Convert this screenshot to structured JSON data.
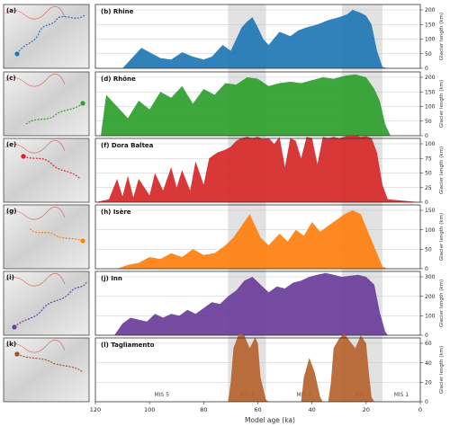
{
  "figure": {
    "xlabel": "Model age (ka)",
    "ylabel": "Glacier length (km)",
    "x_ticks": [
      120,
      100,
      80,
      60,
      40,
      20,
      0
    ],
    "mis_bands": [
      {
        "label": "MIS 5",
        "from": 120,
        "to": 71,
        "shaded": false
      },
      {
        "label": "MIS 4",
        "from": 71,
        "to": 57,
        "shaded": true
      },
      {
        "label": "MIS 3",
        "from": 57,
        "to": 29,
        "shaded": false
      },
      {
        "label": "MIS 2",
        "from": 29,
        "to": 14,
        "shaded": true
      },
      {
        "label": "MIS 1",
        "from": 14,
        "to": 0,
        "shaded": false
      }
    ]
  },
  "maps": [
    {
      "label": "(a)",
      "dot": "#1f77b4"
    },
    {
      "label": "(c)",
      "dot": "#2ca02c"
    },
    {
      "label": "(e)",
      "dot": "#d62728"
    },
    {
      "label": "(g)",
      "dot": "#ff7f0e"
    },
    {
      "label": "(i)",
      "dot": "#6a3d9a"
    },
    {
      "label": "(k)",
      "dot": "#a0522d"
    }
  ],
  "chart_data": [
    {
      "type": "area",
      "panel": "(b)",
      "title": "Rhine",
      "color": "#1f77b4",
      "ylim": [
        0,
        200
      ],
      "yticks": [
        0,
        50,
        100,
        150,
        200
      ],
      "x": [
        120,
        110,
        103,
        99,
        96,
        92,
        88,
        84,
        80,
        77,
        73,
        70,
        66,
        64,
        62,
        60,
        58,
        56,
        52,
        48,
        45,
        42,
        38,
        34,
        30,
        27,
        25,
        22,
        20,
        18,
        16,
        14,
        12,
        0
      ],
      "values": [
        0,
        0,
        70,
        50,
        35,
        30,
        55,
        40,
        30,
        40,
        80,
        60,
        140,
        160,
        175,
        140,
        100,
        80,
        125,
        110,
        130,
        140,
        150,
        165,
        175,
        185,
        200,
        190,
        180,
        150,
        60,
        5,
        0,
        0
      ]
    },
    {
      "type": "area",
      "panel": "(d)",
      "title": "Rhône",
      "color": "#2ca02c",
      "ylim": [
        0,
        200
      ],
      "yticks": [
        0,
        50,
        100,
        150,
        200
      ],
      "x": [
        120,
        118,
        116,
        112,
        108,
        104,
        100,
        96,
        92,
        88,
        84,
        80,
        76,
        72,
        68,
        64,
        60,
        56,
        52,
        48,
        44,
        40,
        36,
        32,
        28,
        24,
        20,
        17,
        15,
        13,
        11,
        0
      ],
      "values": [
        0,
        0,
        140,
        100,
        60,
        120,
        90,
        150,
        130,
        170,
        110,
        160,
        140,
        180,
        175,
        200,
        195,
        170,
        180,
        185,
        180,
        190,
        200,
        195,
        205,
        210,
        200,
        160,
        120,
        40,
        0,
        0
      ]
    },
    {
      "type": "area",
      "panel": "(f)",
      "title": "Dora Baltea",
      "color": "#d62728",
      "ylim": [
        0,
        100
      ],
      "yticks": [
        0,
        25,
        50,
        75,
        100
      ],
      "x": [
        120,
        115,
        112,
        110,
        108,
        106,
        104,
        100,
        98,
        95,
        92,
        90,
        88,
        85,
        83,
        80,
        78,
        75,
        72,
        70,
        68,
        66,
        64,
        62,
        60,
        58,
        56,
        54,
        52,
        50,
        48,
        46,
        44,
        42,
        40,
        38,
        36,
        34,
        32,
        30,
        28,
        26,
        24,
        22,
        20,
        18,
        16,
        14,
        12,
        0
      ],
      "values": [
        0,
        5,
        40,
        10,
        45,
        8,
        40,
        12,
        50,
        20,
        60,
        25,
        55,
        20,
        70,
        30,
        75,
        85,
        90,
        95,
        105,
        110,
        112,
        110,
        112,
        108,
        110,
        100,
        112,
        60,
        110,
        105,
        75,
        112,
        110,
        65,
        112,
        110,
        112,
        110,
        112,
        115,
        114,
        112,
        113,
        110,
        85,
        30,
        5,
        0
      ]
    },
    {
      "type": "area",
      "panel": "(h)",
      "title": "Isère",
      "color": "#ff7f0e",
      "ylim": [
        0,
        150
      ],
      "yticks": [
        0,
        50,
        100,
        150
      ],
      "x": [
        120,
        112,
        108,
        104,
        100,
        96,
        92,
        88,
        84,
        80,
        76,
        72,
        69,
        66,
        63,
        61,
        59,
        56,
        52,
        49,
        46,
        43,
        40,
        37,
        34,
        31,
        28,
        25,
        22,
        19,
        16,
        14,
        12,
        0
      ],
      "values": [
        0,
        0,
        10,
        15,
        30,
        25,
        40,
        30,
        50,
        35,
        40,
        60,
        80,
        110,
        140,
        110,
        80,
        60,
        90,
        70,
        100,
        85,
        120,
        95,
        110,
        125,
        140,
        150,
        140,
        90,
        40,
        5,
        0,
        0
      ]
    },
    {
      "type": "area",
      "panel": "(j)",
      "title": "Inn",
      "color": "#6a3d9a",
      "ylim": [
        0,
        300
      ],
      "yticks": [
        0,
        100,
        200,
        300
      ],
      "x": [
        120,
        113,
        110,
        107,
        104,
        101,
        98,
        95,
        92,
        89,
        86,
        83,
        80,
        77,
        74,
        71,
        68,
        65,
        62,
        59,
        56,
        53,
        50,
        47,
        44,
        41,
        38,
        35,
        32,
        29,
        26,
        23,
        20,
        17,
        15,
        13,
        12,
        0
      ],
      "values": [
        0,
        0,
        60,
        90,
        80,
        70,
        110,
        90,
        110,
        100,
        130,
        110,
        140,
        170,
        160,
        200,
        230,
        280,
        300,
        260,
        220,
        250,
        240,
        270,
        280,
        300,
        310,
        320,
        310,
        300,
        305,
        310,
        300,
        260,
        120,
        20,
        0,
        0
      ]
    },
    {
      "type": "area",
      "panel": "(l)",
      "title": "Tagliamento",
      "color": "#b5622e",
      "ylim": [
        0,
        60
      ],
      "yticks": [
        0,
        20,
        40,
        60
      ],
      "x": [
        120,
        71,
        70,
        69,
        67,
        65,
        63,
        61,
        60,
        59,
        57,
        56,
        44,
        43,
        41,
        39,
        37,
        36,
        34,
        33,
        32,
        30,
        28,
        26,
        24,
        22,
        20,
        19,
        18,
        17,
        0
      ],
      "values": [
        0,
        0,
        20,
        55,
        70,
        68,
        55,
        66,
        60,
        25,
        2,
        0,
        0,
        25,
        45,
        30,
        5,
        0,
        0,
        20,
        55,
        65,
        70,
        62,
        55,
        68,
        60,
        30,
        5,
        0,
        0
      ]
    }
  ]
}
